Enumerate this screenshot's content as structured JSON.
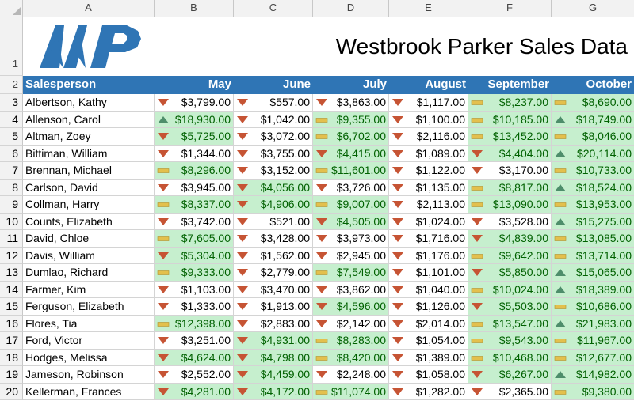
{
  "columns": [
    "A",
    "B",
    "C",
    "D",
    "E",
    "F",
    "G"
  ],
  "title": "Westbrook Parker Sales Data",
  "logo_text": "WP",
  "header": {
    "salesperson": "Salesperson",
    "months": [
      "May",
      "June",
      "July",
      "August",
      "September",
      "October"
    ]
  },
  "row_numbers": [
    "1",
    "2",
    "3",
    "4",
    "5",
    "6",
    "7",
    "8",
    "9",
    "10",
    "11",
    "12",
    "13",
    "14",
    "15",
    "16",
    "17",
    "18",
    "19",
    "20"
  ],
  "colors": {
    "header_bg": "#2f75b5",
    "good_fill": "#c6efce",
    "good_text": "#006100",
    "icon_down": "#c65434",
    "icon_flat": "#e3c04d",
    "icon_up": "#4e8e6b",
    "logo": "#2f75b5"
  },
  "rows": [
    {
      "name": "Albertson, Kathy",
      "cells": [
        [
          "$3,799.00",
          "down",
          false
        ],
        [
          "$557.00",
          "down",
          false
        ],
        [
          "$3,863.00",
          "down",
          false
        ],
        [
          "$1,117.00",
          "down",
          false
        ],
        [
          "$8,237.00",
          "flat",
          true
        ],
        [
          "$8,690.00",
          "flat",
          true
        ]
      ]
    },
    {
      "name": "Allenson, Carol",
      "cells": [
        [
          "$18,930.00",
          "up",
          true
        ],
        [
          "$1,042.00",
          "down",
          false
        ],
        [
          "$9,355.00",
          "flat",
          true
        ],
        [
          "$1,100.00",
          "down",
          false
        ],
        [
          "$10,185.00",
          "flat",
          true
        ],
        [
          "$18,749.00",
          "up",
          true
        ]
      ]
    },
    {
      "name": "Altman, Zoey",
      "cells": [
        [
          "$5,725.00",
          "down",
          true
        ],
        [
          "$3,072.00",
          "down",
          false
        ],
        [
          "$6,702.00",
          "flat",
          true
        ],
        [
          "$2,116.00",
          "down",
          false
        ],
        [
          "$13,452.00",
          "flat",
          true
        ],
        [
          "$8,046.00",
          "flat",
          true
        ]
      ]
    },
    {
      "name": "Bittiman, William",
      "cells": [
        [
          "$1,344.00",
          "down",
          false
        ],
        [
          "$3,755.00",
          "down",
          false
        ],
        [
          "$4,415.00",
          "down",
          true
        ],
        [
          "$1,089.00",
          "down",
          false
        ],
        [
          "$4,404.00",
          "down",
          true
        ],
        [
          "$20,114.00",
          "up",
          true
        ]
      ]
    },
    {
      "name": "Brennan, Michael",
      "cells": [
        [
          "$8,296.00",
          "flat",
          true
        ],
        [
          "$3,152.00",
          "down",
          false
        ],
        [
          "$11,601.00",
          "flat",
          true
        ],
        [
          "$1,122.00",
          "down",
          false
        ],
        [
          "$3,170.00",
          "down",
          false
        ],
        [
          "$10,733.00",
          "flat",
          true
        ]
      ]
    },
    {
      "name": "Carlson, David",
      "cells": [
        [
          "$3,945.00",
          "down",
          false
        ],
        [
          "$4,056.00",
          "down",
          true
        ],
        [
          "$3,726.00",
          "down",
          false
        ],
        [
          "$1,135.00",
          "down",
          false
        ],
        [
          "$8,817.00",
          "flat",
          true
        ],
        [
          "$18,524.00",
          "up",
          true
        ]
      ]
    },
    {
      "name": "Collman, Harry",
      "cells": [
        [
          "$8,337.00",
          "flat",
          true
        ],
        [
          "$4,906.00",
          "down",
          true
        ],
        [
          "$9,007.00",
          "flat",
          true
        ],
        [
          "$2,113.00",
          "down",
          false
        ],
        [
          "$13,090.00",
          "flat",
          true
        ],
        [
          "$13,953.00",
          "flat",
          true
        ]
      ]
    },
    {
      "name": "Counts, Elizabeth",
      "cells": [
        [
          "$3,742.00",
          "down",
          false
        ],
        [
          "$521.00",
          "down",
          false
        ],
        [
          "$4,505.00",
          "down",
          true
        ],
        [
          "$1,024.00",
          "down",
          false
        ],
        [
          "$3,528.00",
          "down",
          false
        ],
        [
          "$15,275.00",
          "up",
          true
        ]
      ]
    },
    {
      "name": "David, Chloe",
      "cells": [
        [
          "$7,605.00",
          "flat",
          true
        ],
        [
          "$3,428.00",
          "down",
          false
        ],
        [
          "$3,973.00",
          "down",
          false
        ],
        [
          "$1,716.00",
          "down",
          false
        ],
        [
          "$4,839.00",
          "down",
          true
        ],
        [
          "$13,085.00",
          "flat",
          true
        ]
      ]
    },
    {
      "name": "Davis, William",
      "cells": [
        [
          "$5,304.00",
          "down",
          true
        ],
        [
          "$1,562.00",
          "down",
          false
        ],
        [
          "$2,945.00",
          "down",
          false
        ],
        [
          "$1,176.00",
          "down",
          false
        ],
        [
          "$9,642.00",
          "flat",
          true
        ],
        [
          "$13,714.00",
          "flat",
          true
        ]
      ]
    },
    {
      "name": "Dumlao, Richard",
      "cells": [
        [
          "$9,333.00",
          "flat",
          true
        ],
        [
          "$2,779.00",
          "down",
          false
        ],
        [
          "$7,549.00",
          "flat",
          true
        ],
        [
          "$1,101.00",
          "down",
          false
        ],
        [
          "$5,850.00",
          "down",
          true
        ],
        [
          "$15,065.00",
          "up",
          true
        ]
      ]
    },
    {
      "name": "Farmer, Kim",
      "cells": [
        [
          "$1,103.00",
          "down",
          false
        ],
        [
          "$3,470.00",
          "down",
          false
        ],
        [
          "$3,862.00",
          "down",
          false
        ],
        [
          "$1,040.00",
          "down",
          false
        ],
        [
          "$10,024.00",
          "flat",
          true
        ],
        [
          "$18,389.00",
          "up",
          true
        ]
      ]
    },
    {
      "name": "Ferguson, Elizabeth",
      "cells": [
        [
          "$1,333.00",
          "down",
          false
        ],
        [
          "$1,913.00",
          "down",
          false
        ],
        [
          "$4,596.00",
          "down",
          true
        ],
        [
          "$1,126.00",
          "down",
          false
        ],
        [
          "$5,503.00",
          "down",
          true
        ],
        [
          "$10,686.00",
          "flat",
          true
        ]
      ]
    },
    {
      "name": "Flores, Tia",
      "cells": [
        [
          "$12,398.00",
          "flat",
          true
        ],
        [
          "$2,883.00",
          "down",
          false
        ],
        [
          "$2,142.00",
          "down",
          false
        ],
        [
          "$2,014.00",
          "down",
          false
        ],
        [
          "$13,547.00",
          "flat",
          true
        ],
        [
          "$21,983.00",
          "up",
          true
        ]
      ]
    },
    {
      "name": "Ford, Victor",
      "cells": [
        [
          "$3,251.00",
          "down",
          false
        ],
        [
          "$4,931.00",
          "down",
          true
        ],
        [
          "$8,283.00",
          "flat",
          true
        ],
        [
          "$1,054.00",
          "down",
          false
        ],
        [
          "$9,543.00",
          "flat",
          true
        ],
        [
          "$11,967.00",
          "flat",
          true
        ]
      ]
    },
    {
      "name": "Hodges, Melissa",
      "cells": [
        [
          "$4,624.00",
          "down",
          true
        ],
        [
          "$4,798.00",
          "down",
          true
        ],
        [
          "$8,420.00",
          "flat",
          true
        ],
        [
          "$1,389.00",
          "down",
          false
        ],
        [
          "$10,468.00",
          "flat",
          true
        ],
        [
          "$12,677.00",
          "flat",
          true
        ]
      ]
    },
    {
      "name": "Jameson, Robinson",
      "cells": [
        [
          "$2,552.00",
          "down",
          false
        ],
        [
          "$4,459.00",
          "down",
          true
        ],
        [
          "$2,248.00",
          "down",
          false
        ],
        [
          "$1,058.00",
          "down",
          false
        ],
        [
          "$6,267.00",
          "down",
          true
        ],
        [
          "$14,982.00",
          "up",
          true
        ]
      ]
    },
    {
      "name": "Kellerman, Frances",
      "cells": [
        [
          "$4,281.00",
          "down",
          true
        ],
        [
          "$4,172.00",
          "down",
          true
        ],
        [
          "$11,074.00",
          "flat",
          true
        ],
        [
          "$1,282.00",
          "down",
          false
        ],
        [
          "$2,365.00",
          "down",
          false
        ],
        [
          "$9,380.00",
          "flat",
          true
        ]
      ]
    }
  ]
}
